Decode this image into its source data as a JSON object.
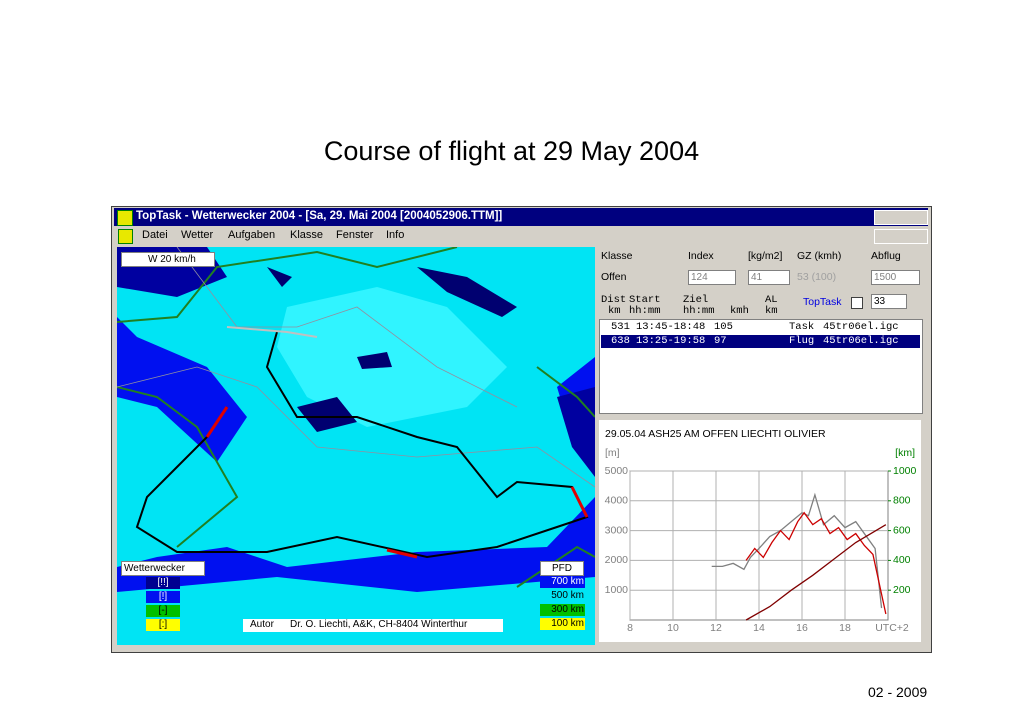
{
  "slide": {
    "title": "Course of flight at 29 May 2004",
    "footer": "02 - 2009"
  },
  "window": {
    "title": "TopTask - Wetterwecker 2004 - [Sa, 29. Mai 2004 [2004052906.TTM]]",
    "menu": [
      "Datei",
      "Wetter",
      "Aufgaben",
      "Klasse",
      "Fenster",
      "Info"
    ]
  },
  "map": {
    "wind": "W 20 km/h",
    "legend_title": "Wetterwecker",
    "levels": [
      "[!!]",
      "[!]",
      "[-]",
      "[:]"
    ],
    "pfd_title": "PFD",
    "pfd": [
      "700 km",
      "500 km",
      "300 km",
      "100 km"
    ],
    "author_label": "Autor",
    "author": "Dr. O. Liechti, A&K, CH-8404 Winterthur"
  },
  "settings": {
    "headers": [
      "Klasse",
      "Index",
      "[kg/m2]",
      "GZ (kmh)",
      "Abflug"
    ],
    "values": [
      "Offen",
      124,
      41,
      "53 (100)",
      1500
    ]
  },
  "flights": {
    "columns_top": [
      "Dist",
      "Start",
      "Ziel",
      "AL"
    ],
    "columns_bottom": [
      "km",
      "hh:mm",
      "hh:mm",
      "kmh",
      "km"
    ],
    "toptask_label": "TopTask",
    "toptask_value": 33,
    "rows": [
      [
        531,
        "13:45-18:48",
        105,
        "Task",
        "45tr06el.igc"
      ],
      [
        638,
        "13:25-19:58",
        97,
        "Flug",
        "45tr06el.igc"
      ]
    ]
  },
  "barogram": {
    "header": "29.05.04  ASH25  AM  OFFEN  LIECHTI OLIVIER",
    "ylabel": "[m]",
    "y2label": "[km]",
    "x_unit": "UTC+2",
    "xlim": [
      8,
      20
    ],
    "ylim": [
      0,
      5000
    ],
    "y2lim": [
      0,
      1000
    ],
    "xticks": [
      8,
      10,
      12,
      14,
      16,
      18
    ],
    "yticks": [
      1000,
      2000,
      3000,
      4000,
      5000
    ],
    "y2ticks": [
      200,
      400,
      600,
      800,
      1000
    ],
    "series": [
      {
        "color": "#808080",
        "axis": "y",
        "x": [
          11.8,
          12.3,
          12.8,
          13.3,
          13.6,
          14,
          14.5,
          15,
          15.5,
          16,
          16.3,
          16.6,
          17,
          17.5,
          18,
          18.5,
          19,
          19.4,
          19.7
        ],
        "y": [
          1800,
          1800,
          1900,
          1700,
          2100,
          2400,
          2800,
          3000,
          3300,
          3600,
          3500,
          4200,
          3200,
          3500,
          3100,
          3300,
          2800,
          2400,
          400
        ]
      },
      {
        "color": "#cc0000",
        "axis": "y",
        "x": [
          13.4,
          13.8,
          14.2,
          14.6,
          15,
          15.4,
          15.8,
          16.1,
          16.5,
          16.9,
          17.3,
          17.7,
          18.1,
          18.5,
          18.9,
          19.3,
          19.6,
          19.9
        ],
        "y": [
          2000,
          2400,
          2100,
          2600,
          3000,
          2700,
          3300,
          3600,
          3200,
          3400,
          2900,
          3100,
          2700,
          2900,
          2500,
          2200,
          1200,
          200
        ]
      },
      {
        "color": "#800000",
        "axis": "y2",
        "x": [
          13.4,
          14.5,
          15.5,
          16.5,
          17.5,
          18.5,
          19.9
        ],
        "y2": [
          0,
          90,
          200,
          300,
          410,
          520,
          640
        ]
      }
    ]
  }
}
